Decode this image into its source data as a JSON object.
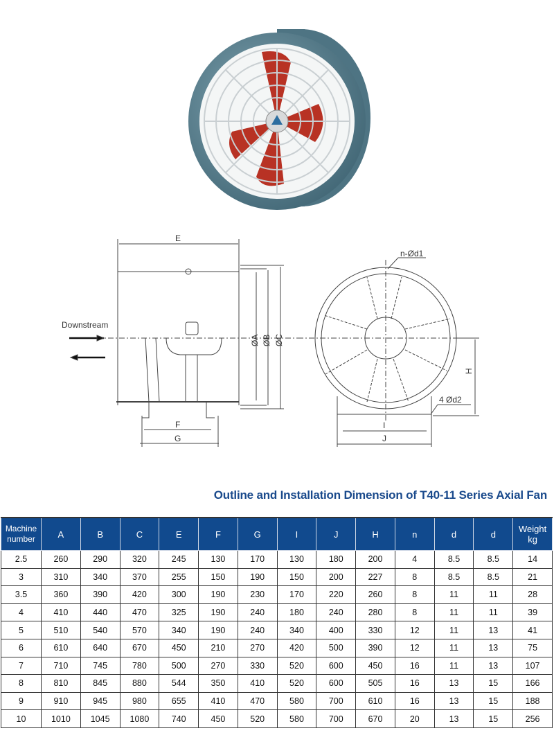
{
  "diagram": {
    "flow_label": "Downstream",
    "side_view_labels": {
      "E": "E",
      "A": "ØA",
      "B": "ØB",
      "C": "ØC",
      "F": "F",
      "G": "G"
    },
    "front_view_labels": {
      "bolt_holes": "n-Ød1",
      "base_holes": "4  Ød2",
      "H": "H",
      "I": "I",
      "J": "J"
    }
  },
  "colors": {
    "housing": "#5b808f",
    "blades": "#b83224",
    "title": "#1a4a8c",
    "header_bg": "#114a8e"
  },
  "table": {
    "title": "Outline and Installation Dimension of T40-11 Series Axial Fan",
    "headers": [
      "Machine number",
      "A",
      "B",
      "C",
      "E",
      "F",
      "G",
      "I",
      "J",
      "H",
      "n",
      "d",
      "d",
      "Weight kg"
    ],
    "rows": [
      [
        "2.5",
        "260",
        "290",
        "320",
        "245",
        "130",
        "170",
        "130",
        "180",
        "200",
        "4",
        "8.5",
        "8.5",
        "14"
      ],
      [
        "3",
        "310",
        "340",
        "370",
        "255",
        "150",
        "190",
        "150",
        "200",
        "227",
        "8",
        "8.5",
        "8.5",
        "21"
      ],
      [
        "3.5",
        "360",
        "390",
        "420",
        "300",
        "190",
        "230",
        "170",
        "220",
        "260",
        "8",
        "11",
        "11",
        "28"
      ],
      [
        "4",
        "410",
        "440",
        "470",
        "325",
        "190",
        "240",
        "180",
        "240",
        "280",
        "8",
        "11",
        "11",
        "39"
      ],
      [
        "5",
        "510",
        "540",
        "570",
        "340",
        "190",
        "240",
        "340",
        "400",
        "330",
        "12",
        "11",
        "13",
        "41"
      ],
      [
        "6",
        "610",
        "640",
        "670",
        "450",
        "210",
        "270",
        "420",
        "500",
        "390",
        "12",
        "11",
        "13",
        "75"
      ],
      [
        "7",
        "710",
        "745",
        "780",
        "500",
        "270",
        "330",
        "520",
        "600",
        "450",
        "16",
        "11",
        "13",
        "107"
      ],
      [
        "8",
        "810",
        "845",
        "880",
        "544",
        "350",
        "410",
        "520",
        "600",
        "505",
        "16",
        "13",
        "15",
        "166"
      ],
      [
        "9",
        "910",
        "945",
        "980",
        "655",
        "410",
        "470",
        "580",
        "700",
        "610",
        "16",
        "13",
        "15",
        "188"
      ],
      [
        "10",
        "1010",
        "1045",
        "1080",
        "740",
        "450",
        "520",
        "580",
        "700",
        "670",
        "20",
        "13",
        "15",
        "256"
      ]
    ]
  }
}
